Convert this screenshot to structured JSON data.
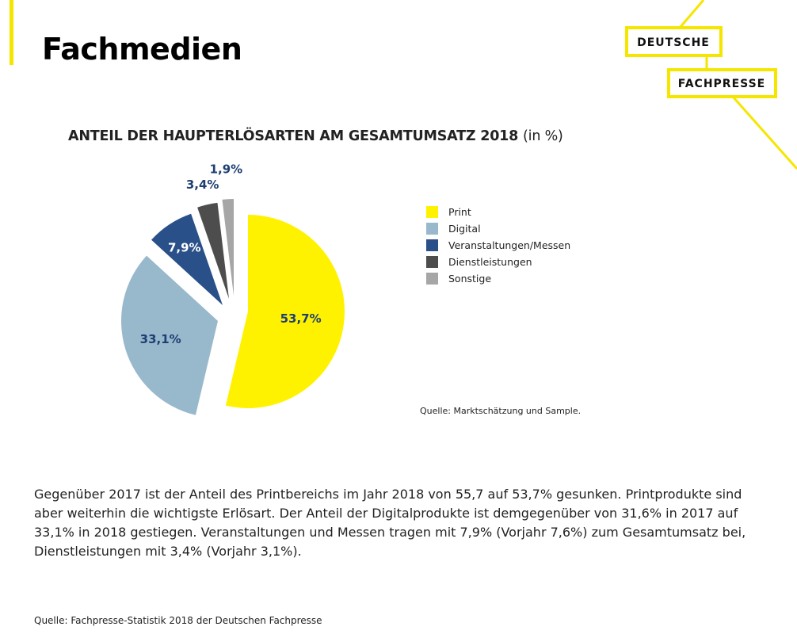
{
  "page": {
    "title": "Fachmedien",
    "body": "Gegenüber 2017 ist der Anteil des Printbereichs im Jahr 2018 von 55,7 auf 53,7% gesunken. Printprodukte sind aber weiterhin die wichtigste Erlösart. Der Anteil der Digitalprodukte ist demgegenüber von 31,6% in 2017 auf 33,1% in 2018 gestiegen. Veranstaltungen und Messen tragen mit 7,9% (Vorjahr 7,6%) zum Gesamtumsatz bei, Dienstleistungen mit 3,4% (Vorjahr 3,1%).",
    "footer_source": "Quelle: Fachpresse-Statistik 2018 der Deutschen Fachpresse"
  },
  "logo": {
    "line1": "DEUTSCHE",
    "line2": "FACHPRESSE",
    "color": "#f5e600"
  },
  "chart_data": {
    "type": "pie",
    "title": "ANTEIL DER HAUPTERLÖSARTEN AM GESAMTUMSATZ 2018",
    "title_unit": "(in %)",
    "source": "Quelle: Marktschätzung und Sample.",
    "legend_position": "right",
    "slices": [
      {
        "name": "Print",
        "value": 53.7,
        "label": "53,7%",
        "color": "#fff200"
      },
      {
        "name": "Digital",
        "value": 33.1,
        "label": "33,1%",
        "color": "#98b8cc"
      },
      {
        "name": "Veranstaltungen/Messen",
        "value": 7.9,
        "label": "7,9%",
        "color": "#2a5089"
      },
      {
        "name": "Dienstleistungen",
        "value": 3.4,
        "label": "3,4%",
        "color": "#4d4d4d"
      },
      {
        "name": "Sonstige",
        "value": 1.9,
        "label": "1,9%",
        "color": "#a6a6a6"
      }
    ]
  }
}
